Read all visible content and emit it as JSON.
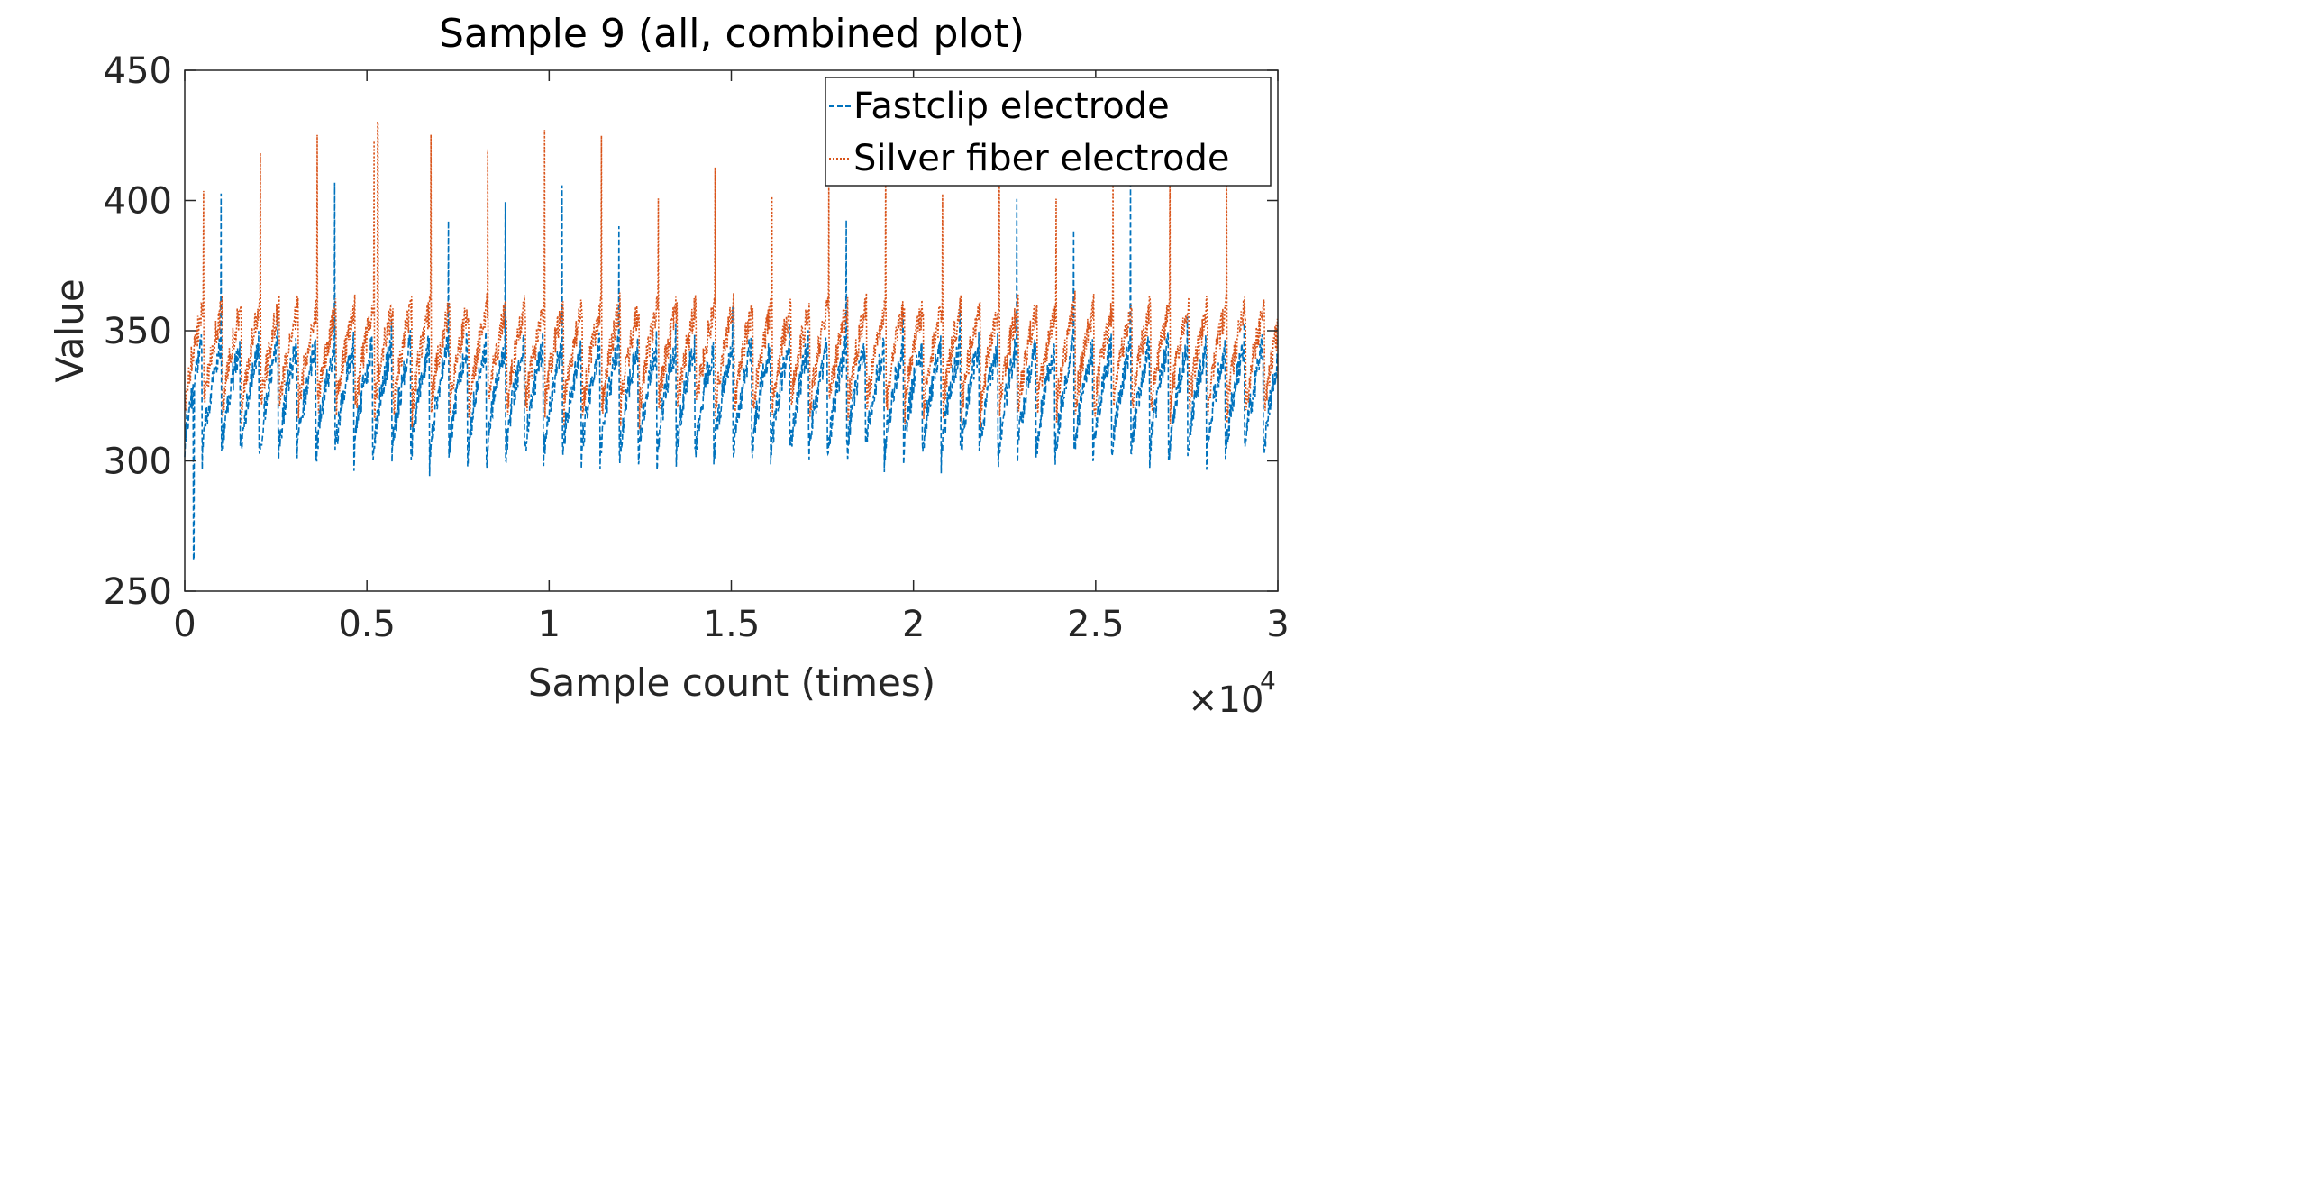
{
  "chart_data": {
    "type": "line",
    "title": "Sample 9 (all, combined plot)",
    "xlabel": "Sample count (times)",
    "ylabel": "Value",
    "xlim": [
      0,
      30000
    ],
    "ylim": [
      250,
      450
    ],
    "x_ticks": [
      0,
      5000,
      10000,
      15000,
      20000,
      25000,
      30000
    ],
    "x_tick_labels": [
      "0",
      "0.5",
      "1",
      "1.5",
      "2",
      "2.5",
      "3"
    ],
    "y_ticks": [
      250,
      300,
      350,
      400,
      450
    ],
    "y_tick_labels": [
      "250",
      "300",
      "350",
      "400",
      "450"
    ],
    "x_exponent_base": "×10",
    "x_exponent_power": "4",
    "grid": false,
    "legend_position": "top-right",
    "series": [
      {
        "name": "Fastclip electrode",
        "color": "#0072BD",
        "line_style": "dashed",
        "baseline": 315,
        "beat_min": 300,
        "beat_max": 345,
        "spike_peaks": [
          360,
          395,
          400,
          408
        ],
        "notable_min": 262,
        "notable_min_x": 250
      },
      {
        "name": "Silver fiber electrode",
        "color": "#D95319",
        "line_style": "dotted",
        "baseline": 338,
        "beat_min": 318,
        "beat_max": 360,
        "spike_peaks": [
          405,
          420,
          425,
          430
        ],
        "notable_max": 430,
        "notable_max_x": 5300
      }
    ],
    "beat_interval_approx": 520
  }
}
